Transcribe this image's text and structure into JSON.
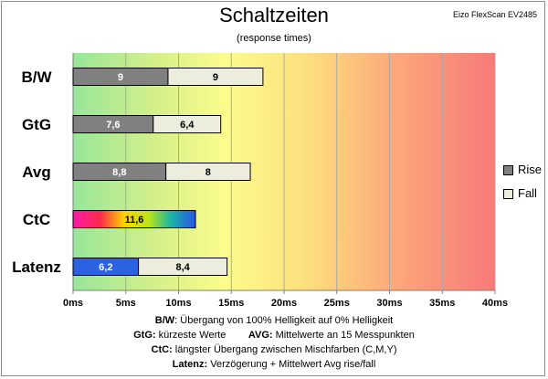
{
  "header": {
    "title": "Schaltzeiten",
    "subtitle": "(response times)",
    "brand": "Eizo FlexScan EV2485"
  },
  "legend": {
    "rise_label": "Rise",
    "fall_label": "Fall",
    "rise_color": "#808080",
    "fall_color": "#ededde"
  },
  "footnotes": {
    "line1_key": "B/W",
    "line1_text": ":  Übergang von 100% Helligkeit auf 0% Helligkeit",
    "line2a_key": "GtG:",
    "line2a_text": " kürzeste  Werte",
    "line2b_key": "AVG:",
    "line2b_text": " Mittelwerte  an 15 Messpunkten",
    "line3_key": "CtC:",
    "line3_text": " längster Übergang  zwischen Mischfarben  (C,M,Y)",
    "line4_key": "Latenz:",
    "line4_text": " Verzögerung  + Mittelwert  Avg rise/fall"
  },
  "chart_data": {
    "type": "bar",
    "orientation": "horizontal",
    "stacked": true,
    "title": "Schaltzeiten",
    "subtitle": "(response times)",
    "categories": [
      "B/W",
      "GtG",
      "Avg",
      "CtC",
      "Latenz"
    ],
    "series": [
      {
        "name": "Rise",
        "values": [
          9,
          7.6,
          8.8,
          11.6,
          6.2
        ],
        "labels": [
          "9",
          "7,6",
          "8,8",
          "11,6",
          "6,2"
        ]
      },
      {
        "name": "Fall",
        "values": [
          9,
          6.4,
          8,
          null,
          8.4
        ],
        "labels": [
          "9",
          "6,4",
          "8",
          "",
          "8,4"
        ]
      }
    ],
    "special_fills": {
      "CtC": "rainbow",
      "Latenz": "blue"
    },
    "xlim": [
      0,
      40
    ],
    "xticks": [
      0,
      5,
      10,
      15,
      20,
      25,
      30,
      35,
      40
    ],
    "xtick_labels": [
      "0ms",
      "5ms",
      "10ms",
      "15ms",
      "20ms",
      "25ms",
      "30ms",
      "35ms",
      "40ms"
    ],
    "background": "gradient green-yellow-red",
    "grid": true,
    "legend_position": "right"
  }
}
